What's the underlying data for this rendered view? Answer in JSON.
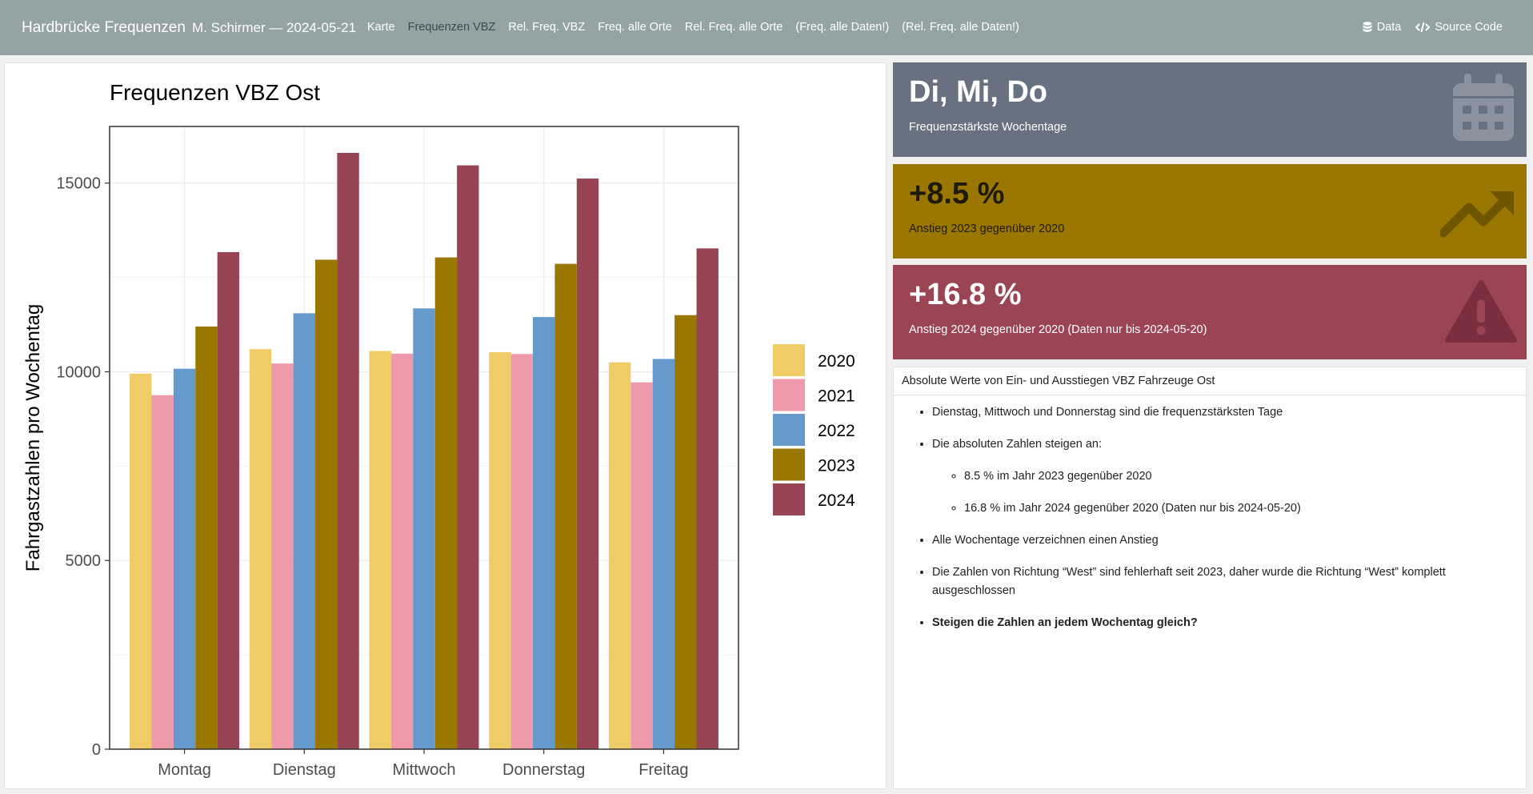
{
  "navbar": {
    "brand": "Hardbrücke Frequenzen",
    "author": "M. Schirmer — 2024-05-21",
    "links": [
      "Karte",
      "Frequenzen VBZ",
      "Rel. Freq. VBZ",
      "Freq. alle Orte",
      "Rel. Freq. alle Orte",
      "(Freq. alle Daten!)",
      "(Rel. Freq. alle Daten!)"
    ],
    "active_index": 1,
    "data_label": "Data",
    "source_label": "Source Code"
  },
  "value_boxes": [
    {
      "value": "Di, Mi, Do",
      "caption": "Frequenzstärkste Wochentage",
      "icon": "calendar-icon",
      "color": "#67717f"
    },
    {
      "value": "+8.5 %",
      "caption": "Anstieg 2023 gegenüber 2020",
      "icon": "trending-up-icon",
      "color": "#9a7700"
    },
    {
      "value": "+16.8 %",
      "caption": "Anstieg 2024 gegenüber 2020 (Daten nur bis 2024-05-20)",
      "icon": "warning-icon",
      "color": "#9b4454"
    }
  ],
  "text_card": {
    "header": "Absolute Werte von Ein- und Ausstiegen VBZ Fahrzeuge Ost",
    "bullet1": "Dienstag, Mittwoch und Donnerstag sind die frequenzstärksten Tage",
    "bullet2": "Die absoluten Zahlen steigen an:",
    "sub1": "8.5 % im Jahr 2023 gegenüber 2020",
    "sub2": "16.8 % im Jahr 2024 gegenüber 2020 (Daten nur bis 2024-05-20)",
    "bullet3": "Alle Wochentage verzeichnen einen Anstieg",
    "bullet4": "Die Zahlen von Richtung “West” sind fehlerhaft seit 2023, daher wurde die Richtung “West” komplett ausgeschlossen",
    "bullet5": "Steigen die Zahlen an jedem Wochentag gleich?"
  },
  "chart_data": {
    "type": "bar",
    "title": "Frequenzen VBZ Ost",
    "xlabel": "",
    "ylabel": "Fahrgastzahlen pro Wochentag",
    "categories": [
      "Montag",
      "Dienstag",
      "Mittwoch",
      "Donnerstag",
      "Freitag"
    ],
    "ylim": [
      0,
      16500
    ],
    "yticks": [
      0,
      5000,
      10000,
      15000
    ],
    "grid": true,
    "legend": "right",
    "series": [
      {
        "name": "2020",
        "color": "#f0cc66",
        "values": [
          9950,
          10600,
          10550,
          10520,
          10250
        ]
      },
      {
        "name": "2021",
        "color": "#ef9aab",
        "values": [
          9380,
          10220,
          10480,
          10470,
          9720
        ]
      },
      {
        "name": "2022",
        "color": "#6699cc",
        "values": [
          10080,
          11550,
          11680,
          11450,
          10340
        ]
      },
      {
        "name": "2023",
        "color": "#997700",
        "values": [
          11200,
          12970,
          13030,
          12860,
          11500
        ]
      },
      {
        "name": "2024",
        "color": "#994455",
        "values": [
          13170,
          15800,
          15470,
          15120,
          13270
        ]
      }
    ]
  }
}
